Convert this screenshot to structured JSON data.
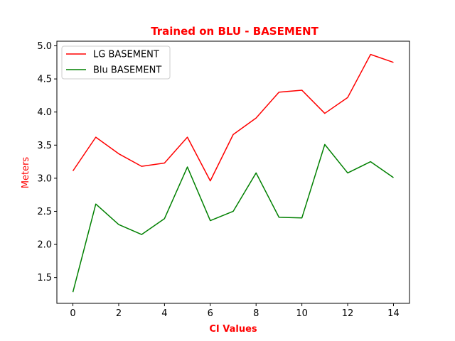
{
  "chart_data": {
    "type": "line",
    "title": "Trained on BLU - BASEMENT",
    "xlabel": "CI Values",
    "ylabel": "Meters",
    "title_color": "#ff0000",
    "xlabel_color": "#ff0000",
    "ylabel_color": "#ff0000",
    "x": [
      0,
      1,
      2,
      3,
      4,
      5,
      6,
      7,
      8,
      9,
      10,
      11,
      12,
      13,
      14
    ],
    "xticks": [
      0,
      2,
      4,
      6,
      8,
      10,
      12,
      14
    ],
    "xtick_labels": [
      "0",
      "2",
      "4",
      "6",
      "8",
      "10",
      "12",
      "14"
    ],
    "yticks": [
      1.5,
      2.0,
      2.5,
      3.0,
      3.5,
      4.0,
      4.5,
      5.0
    ],
    "ytick_labels": [
      "1.5",
      "2.0",
      "2.5",
      "3.0",
      "3.5",
      "4.0",
      "4.5",
      "5.0"
    ],
    "xlim": [
      -0.7,
      14.7
    ],
    "ylim": [
      1.11,
      5.07
    ],
    "grid": false,
    "legend_position": "top-left",
    "series": [
      {
        "name": "LG BASEMENT",
        "color": "#ff0000",
        "values": [
          3.11,
          3.62,
          3.37,
          3.18,
          3.23,
          3.62,
          2.96,
          3.66,
          3.91,
          4.3,
          4.33,
          3.98,
          4.22,
          4.87,
          4.75
        ]
      },
      {
        "name": "Blu BASEMENT",
        "color": "#008000",
        "values": [
          1.28,
          2.61,
          2.3,
          2.15,
          2.39,
          3.17,
          2.36,
          2.5,
          3.08,
          2.41,
          2.4,
          3.51,
          3.08,
          3.25,
          3.01
        ]
      }
    ]
  }
}
